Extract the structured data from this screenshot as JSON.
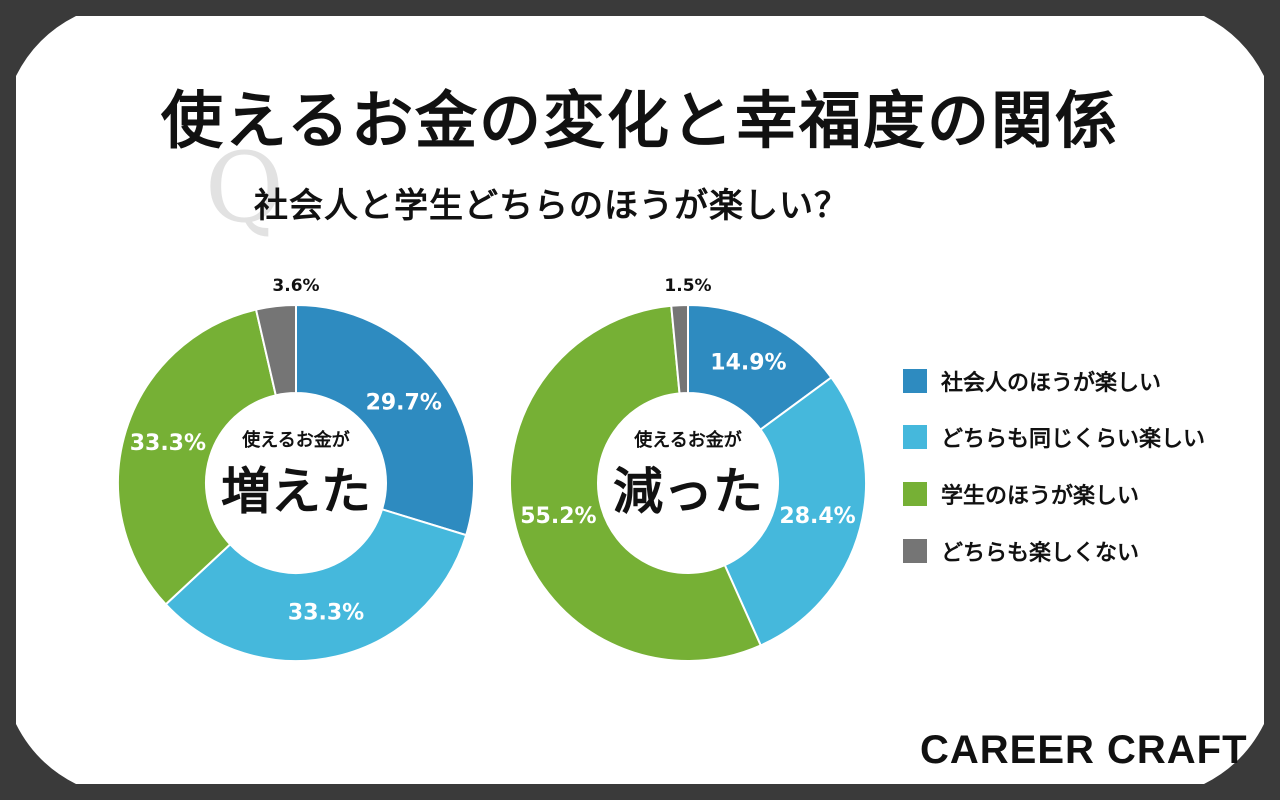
{
  "title": "使えるお金の変化と幸福度の関係",
  "question_mark": "Q",
  "subtitle": "社会人と学生どちらのほうが楽しい？",
  "colors": {
    "working": "#2e8bc0",
    "same": "#45b8dc",
    "student": "#76b035",
    "neither": "#757575",
    "background": "#3a3a3a"
  },
  "legend": [
    {
      "label": "社会人のほうが楽しい",
      "color": "#2e8bc0"
    },
    {
      "label": "どちらも同じくらい楽しい",
      "color": "#45b8dc"
    },
    {
      "label": "学生のほうが楽しい",
      "color": "#76b035"
    },
    {
      "label": "どちらも楽しくない",
      "color": "#757575"
    }
  ],
  "chart_data": [
    {
      "type": "pie",
      "center_label_small": "使えるお金が",
      "center_label_large": "増えた",
      "categories": [
        "社会人のほうが楽しい",
        "どちらも同じくらい楽しい",
        "学生のほうが楽しい",
        "どちらも楽しくない"
      ],
      "values": [
        29.7,
        33.3,
        33.3,
        3.6
      ],
      "labels": [
        "29.7%",
        "33.3%",
        "33.3%",
        "3.6%"
      ]
    },
    {
      "type": "pie",
      "center_label_small": "使えるお金が",
      "center_label_large": "減った",
      "categories": [
        "社会人のほうが楽しい",
        "どちらも同じくらい楽しい",
        "学生のほうが楽しい",
        "どちらも楽しくない"
      ],
      "values": [
        14.9,
        28.4,
        55.2,
        1.5
      ],
      "labels": [
        "14.9%",
        "28.4%",
        "55.2%",
        "1.5%"
      ]
    }
  ],
  "brand": "CAREER CRAFT"
}
